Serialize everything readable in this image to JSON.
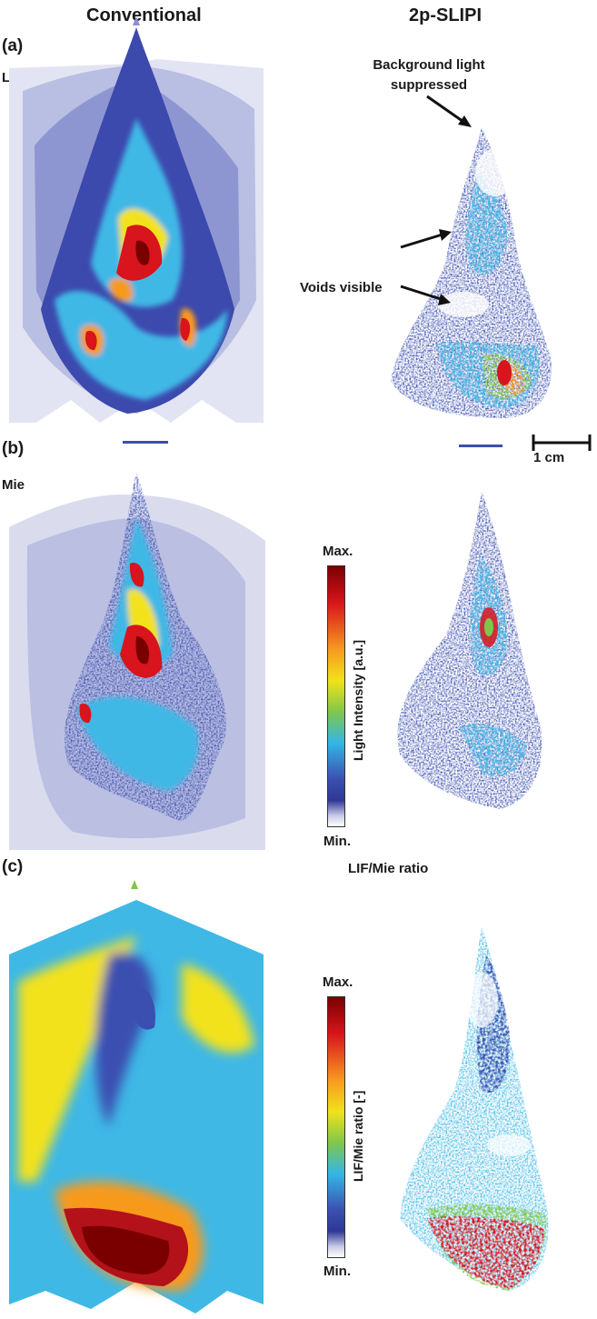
{
  "columns": {
    "left": "Conventional",
    "right": "2p-SLIPI"
  },
  "panels": {
    "a": {
      "tag": "(a)",
      "name": "LIF"
    },
    "b": {
      "tag": "(b)",
      "name": "Mie"
    },
    "c": {
      "tag": "(c)",
      "name": "LIF/Mie ratio"
    }
  },
  "annotations": {
    "background_line1": "Background light",
    "background_line2": "suppressed",
    "voids": "Voids visible",
    "scale_bar": "1 cm"
  },
  "colorbars": {
    "intensity": {
      "max": "Max.",
      "min": "Min.",
      "title": "Light Intensity [a.u.]"
    },
    "ratio": {
      "max": "Max.",
      "min": "Min.",
      "title": "LIF/Mie ratio [-]"
    }
  },
  "colors": {
    "dark_red": "#8b0000",
    "red": "#e8141c",
    "orange": "#f79a1e",
    "yellow": "#f2e21b",
    "green": "#7fc74a",
    "cyan": "#33b6e6",
    "blue": "#3b4fb0",
    "navy": "#2e3796",
    "pale": "#d4d7ee",
    "white": "#ffffff"
  }
}
